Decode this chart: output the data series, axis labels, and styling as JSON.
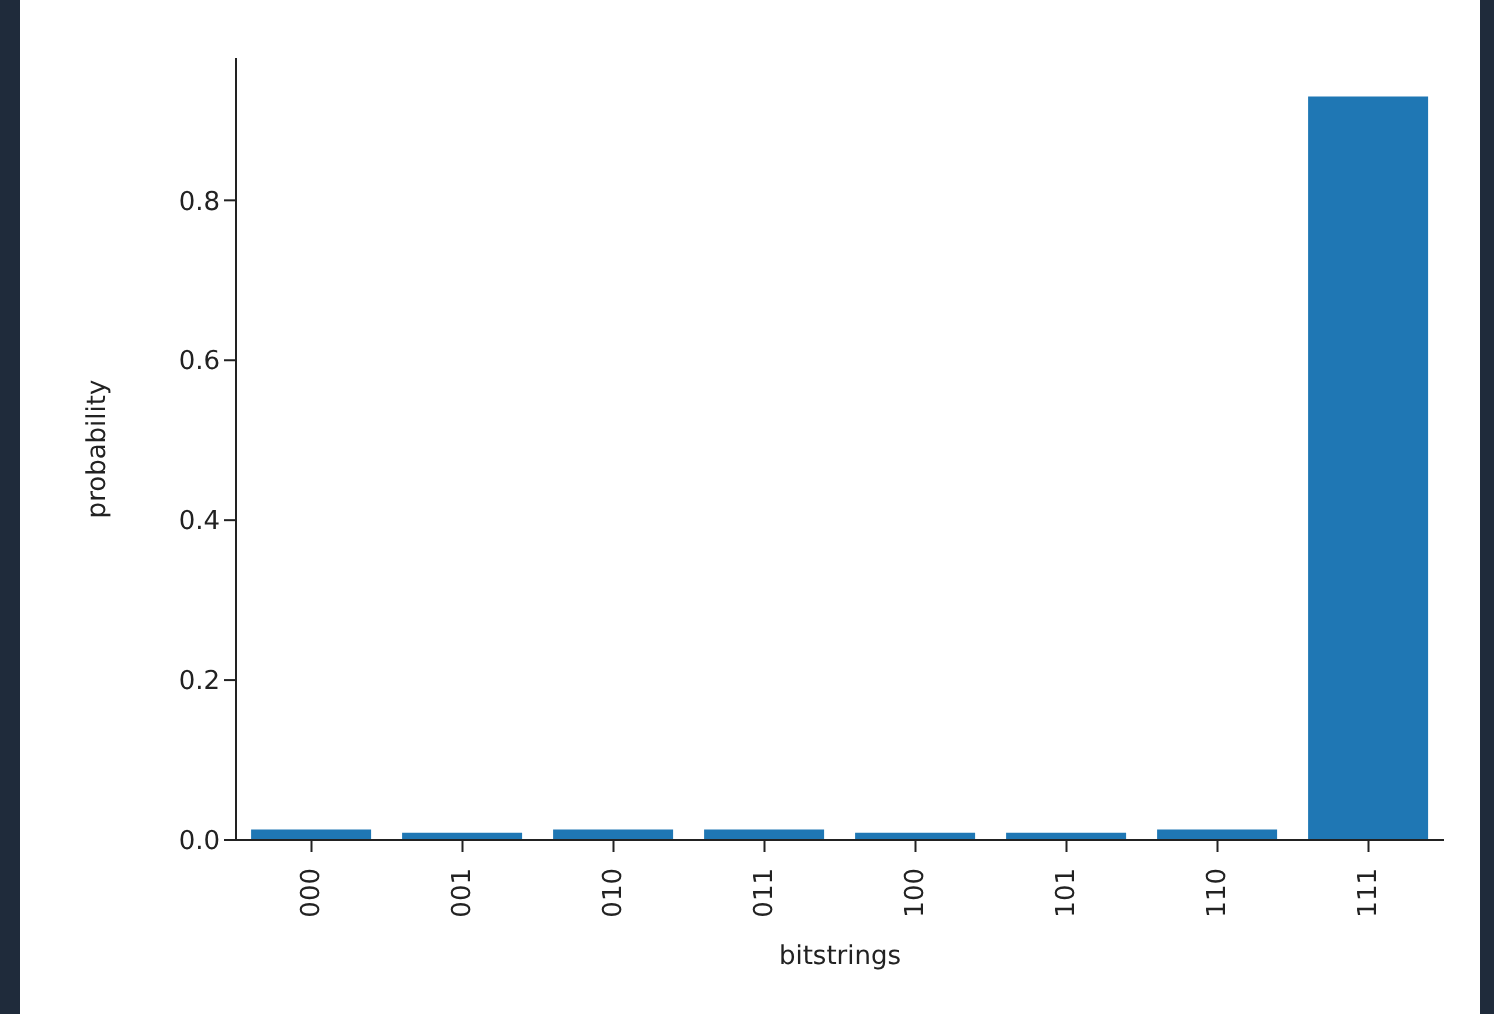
{
  "chart_data": {
    "type": "bar",
    "xlabel": "bitstrings",
    "ylabel": "probability",
    "categories": [
      "000",
      "001",
      "010",
      "011",
      "100",
      "101",
      "110",
      "111"
    ],
    "values": [
      0.013,
      0.009,
      0.013,
      0.013,
      0.009,
      0.009,
      0.013,
      0.93
    ],
    "color": "#1f77b4",
    "ylim": [
      0,
      0.978
    ],
    "yticks": [
      {
        "value": 0,
        "label": "0.0"
      },
      {
        "value": 0.2,
        "label": "0.2"
      },
      {
        "value": 0.4,
        "label": "0.4"
      },
      {
        "value": 0.6,
        "label": "0.6"
      },
      {
        "value": 0.8,
        "label": "0.8"
      }
    ],
    "grid": false,
    "legend": false
  }
}
